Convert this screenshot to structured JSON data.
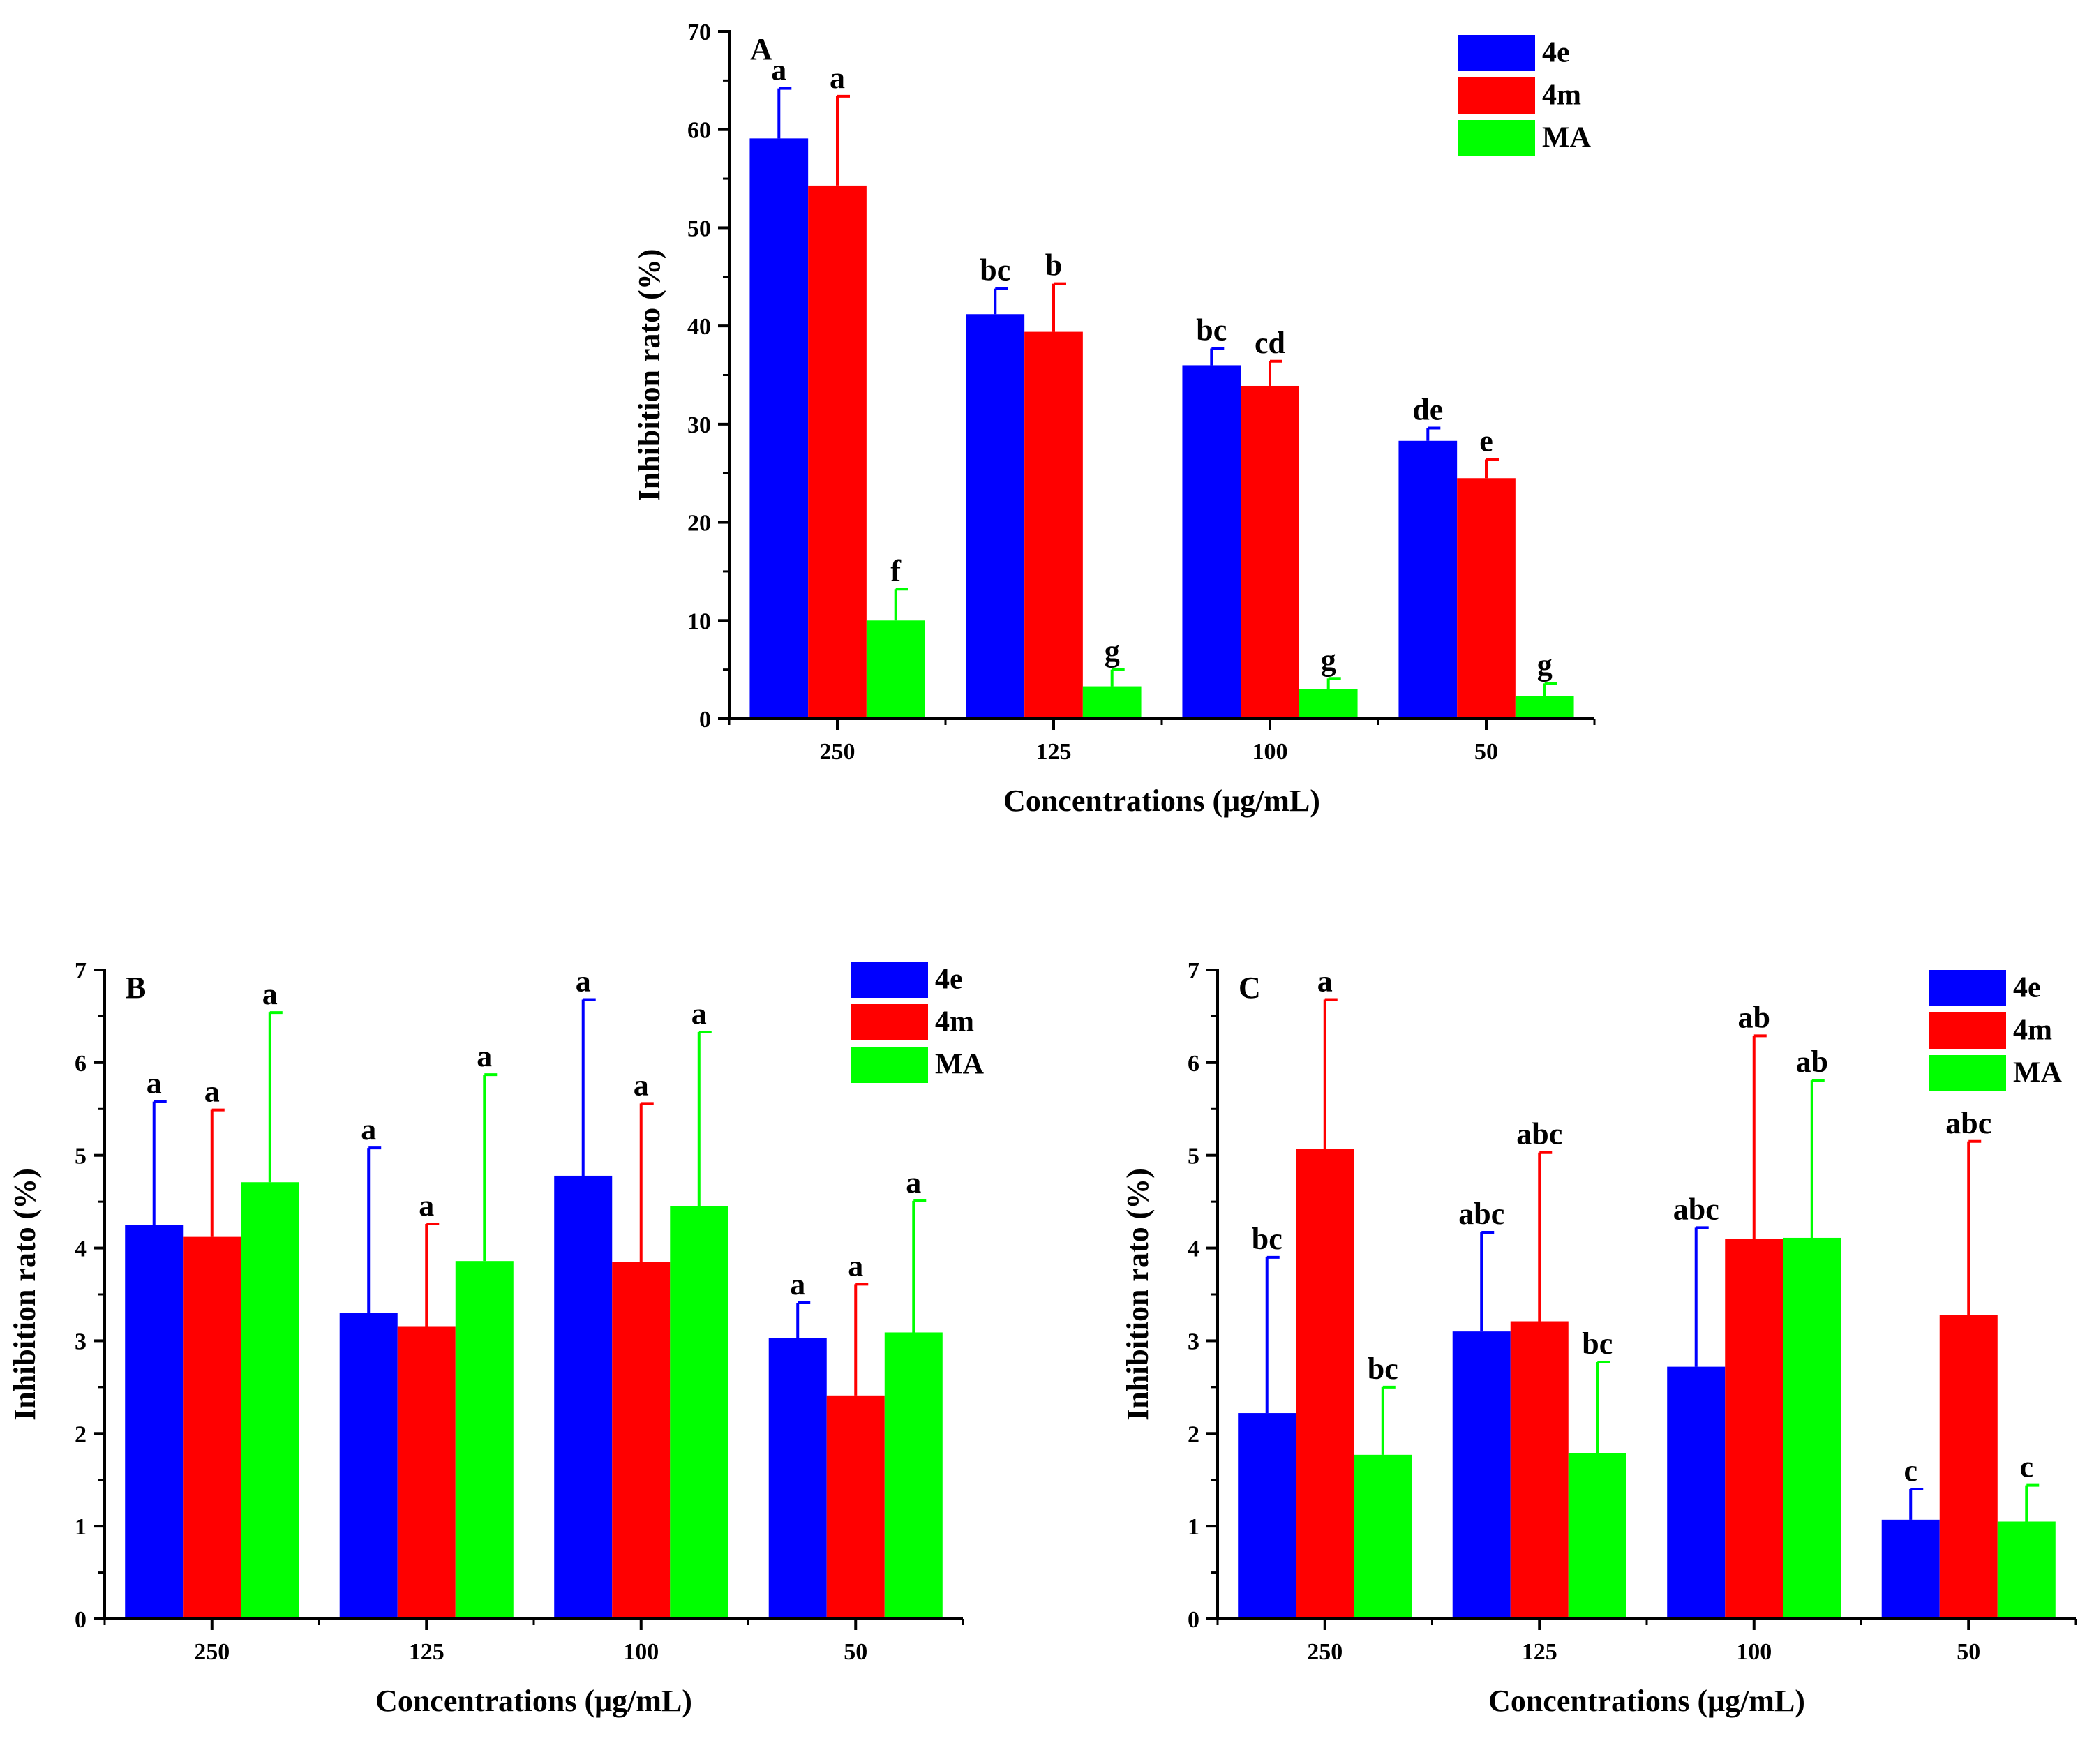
{
  "colors": {
    "4e": "#0000ff",
    "4m": "#ff0000",
    "MA": "#00ff00"
  },
  "chart_data": [
    {
      "type": "bar",
      "panel_label": "A",
      "xlabel": "Concentrations (μg/mL)",
      "ylabel": "Inhibition rato (%)",
      "ylim": [
        0,
        70
      ],
      "yticks": [
        "0",
        "10",
        "20",
        "30",
        "40",
        "50",
        "60",
        "70"
      ],
      "categories": [
        "250",
        "125",
        "100",
        "50"
      ],
      "legend_position": "top-right",
      "series": [
        {
          "name": "4e",
          "values": [
            59.1,
            41.2,
            36.0,
            28.3
          ],
          "errors": [
            5.1,
            2.6,
            1.7,
            1.3
          ],
          "letters": [
            "a",
            "bc",
            "bc",
            "de"
          ]
        },
        {
          "name": "4m",
          "values": [
            54.3,
            39.4,
            33.9,
            24.5
          ],
          "errors": [
            9.1,
            4.9,
            2.5,
            1.9
          ],
          "letters": [
            "a",
            "b",
            "cd",
            "e"
          ]
        },
        {
          "name": "MA",
          "values": [
            10.0,
            3.3,
            3.0,
            2.3
          ],
          "errors": [
            3.2,
            1.7,
            1.1,
            1.3
          ],
          "letters": [
            "f",
            "g",
            "g",
            "g"
          ]
        }
      ]
    },
    {
      "type": "bar",
      "panel_label": "B",
      "xlabel": "Concentrations (μg/mL)",
      "ylabel": "Inhibition rato (%)",
      "ylim": [
        0,
        7
      ],
      "yticks": [
        "0",
        "1",
        "2",
        "3",
        "4",
        "5",
        "6",
        "7"
      ],
      "categories": [
        "250",
        "125",
        "100",
        "50"
      ],
      "legend_position": "top-right",
      "series": [
        {
          "name": "4e",
          "values": [
            4.25,
            3.3,
            4.78,
            3.03
          ],
          "errors": [
            1.33,
            1.78,
            1.9,
            0.38
          ],
          "letters": [
            "a",
            "a",
            "a",
            "a"
          ]
        },
        {
          "name": "4m",
          "values": [
            4.12,
            3.15,
            3.85,
            2.41
          ],
          "errors": [
            1.37,
            1.11,
            1.71,
            1.2
          ],
          "letters": [
            "a",
            "a",
            "a",
            "a"
          ]
        },
        {
          "name": "MA",
          "values": [
            4.71,
            3.86,
            4.45,
            3.09
          ],
          "errors": [
            1.83,
            2.01,
            1.88,
            1.42
          ],
          "letters": [
            "a",
            "a",
            "a",
            "a"
          ]
        }
      ]
    },
    {
      "type": "bar",
      "panel_label": "C",
      "xlabel": "Concentrations (μg/mL)",
      "ylabel": "Inhibition rato (%)",
      "ylim": [
        0,
        7
      ],
      "yticks": [
        "0",
        "1",
        "2",
        "3",
        "4",
        "5",
        "6",
        "7"
      ],
      "categories": [
        "250",
        "125",
        "100",
        "50"
      ],
      "legend_position": "top-right",
      "series": [
        {
          "name": "4e",
          "values": [
            2.22,
            3.1,
            2.72,
            1.07
          ],
          "errors": [
            1.68,
            1.07,
            1.5,
            0.33
          ],
          "letters": [
            "bc",
            "abc",
            "abc",
            "c"
          ]
        },
        {
          "name": "4m",
          "values": [
            5.07,
            3.21,
            4.1,
            3.28
          ],
          "errors": [
            1.61,
            1.82,
            2.19,
            1.87
          ],
          "letters": [
            "a",
            "abc",
            "ab",
            "abc"
          ]
        },
        {
          "name": "MA",
          "values": [
            1.77,
            1.79,
            4.11,
            1.05
          ],
          "errors": [
            0.73,
            0.98,
            1.7,
            0.39
          ],
          "letters": [
            "bc",
            "bc",
            "ab",
            "c"
          ]
        }
      ]
    }
  ]
}
